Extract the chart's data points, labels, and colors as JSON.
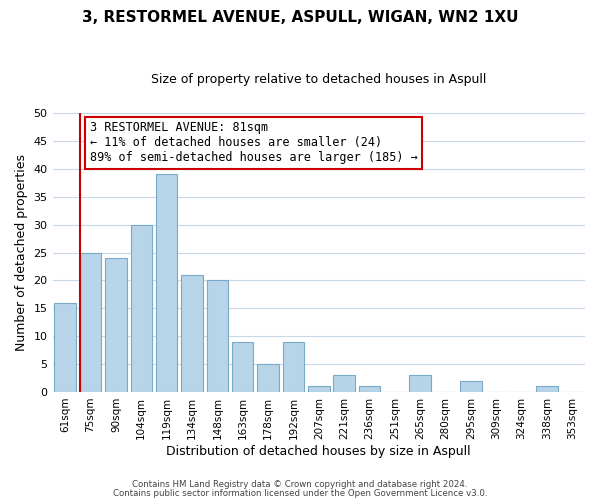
{
  "title": "3, RESTORMEL AVENUE, ASPULL, WIGAN, WN2 1XU",
  "subtitle": "Size of property relative to detached houses in Aspull",
  "xlabel": "Distribution of detached houses by size in Aspull",
  "ylabel": "Number of detached properties",
  "categories": [
    "61sqm",
    "75sqm",
    "90sqm",
    "104sqm",
    "119sqm",
    "134sqm",
    "148sqm",
    "163sqm",
    "178sqm",
    "192sqm",
    "207sqm",
    "221sqm",
    "236sqm",
    "251sqm",
    "265sqm",
    "280sqm",
    "295sqm",
    "309sqm",
    "324sqm",
    "338sqm",
    "353sqm"
  ],
  "values": [
    16,
    25,
    24,
    30,
    39,
    21,
    20,
    9,
    5,
    9,
    1,
    3,
    1,
    0,
    3,
    0,
    2,
    0,
    0,
    1,
    0
  ],
  "bar_color": "#b8d4e8",
  "bar_edge_color": "#7aaac8",
  "ylim": [
    0,
    50
  ],
  "yticks": [
    0,
    5,
    10,
    15,
    20,
    25,
    30,
    35,
    40,
    45,
    50
  ],
  "vline_color": "#cc0000",
  "annotation_title": "3 RESTORMEL AVENUE: 81sqm",
  "annotation_line1": "← 11% of detached houses are smaller (24)",
  "annotation_line2": "89% of semi-detached houses are larger (185) →",
  "annotation_box_color": "#ffffff",
  "annotation_box_edge": "#cc0000",
  "footer1": "Contains HM Land Registry data © Crown copyright and database right 2024.",
  "footer2": "Contains public sector information licensed under the Open Government Licence v3.0.",
  "background_color": "#ffffff",
  "grid_color": "#c8d8e8"
}
